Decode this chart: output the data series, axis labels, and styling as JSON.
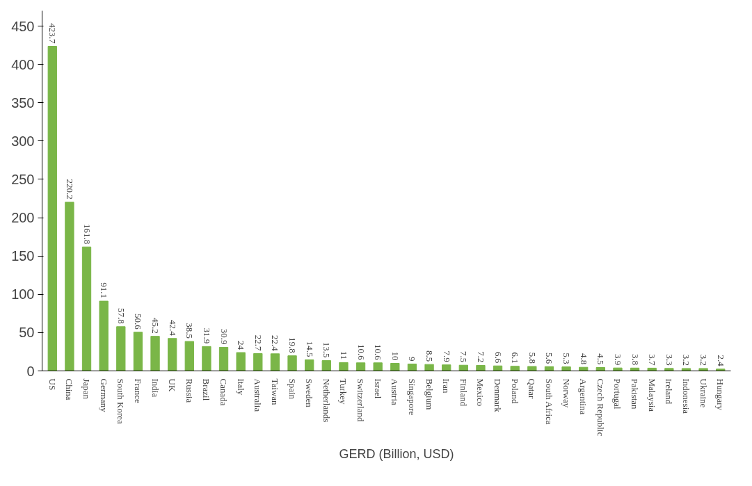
{
  "chart_data": {
    "type": "bar",
    "categories": [
      "US",
      "China",
      "Japan",
      "Germany",
      "South Korea",
      "France",
      "India",
      "UK",
      "Russia",
      "Brazil",
      "Canada",
      "Italy",
      "Australia",
      "Taiwan",
      "Spain",
      "Sweden",
      "Netherlands",
      "Turkey",
      "Switzerland",
      "Israel",
      "Austria",
      "Singapore",
      "Belgium",
      "Iran",
      "Finland",
      "Mexico",
      "Denmark",
      "Poland",
      "Qatar",
      "South Africa",
      "Norway",
      "Argentina",
      "Czech Republic",
      "Portugal",
      "Pakistan",
      "Malaysia",
      "Ireland",
      "Indonesia",
      "Ukraine",
      "Hungary"
    ],
    "series": [
      {
        "name": "GERD (Billion, USD)",
        "color": "#7ab648",
        "values": [
          423.7,
          220.2,
          161.8,
          91.1,
          57.8,
          50.6,
          45.2,
          42.4,
          38.5,
          31.9,
          30.9,
          24,
          22.7,
          22.4,
          19.8,
          14.5,
          13.5,
          11,
          10.6,
          10.6,
          10,
          9,
          8.5,
          7.9,
          7.5,
          7.2,
          6.6,
          6.1,
          5.8,
          5.6,
          5.3,
          4.8,
          4.5,
          3.9,
          3.8,
          3.7,
          3.3,
          3.2,
          3.2,
          2.4
        ]
      }
    ],
    "ylim": [
      0,
      470
    ],
    "yticks": [
      0,
      50,
      100,
      150,
      200,
      250,
      300,
      350,
      400,
      450
    ],
    "grid": false,
    "legend": "bottom",
    "data_labels": true
  }
}
